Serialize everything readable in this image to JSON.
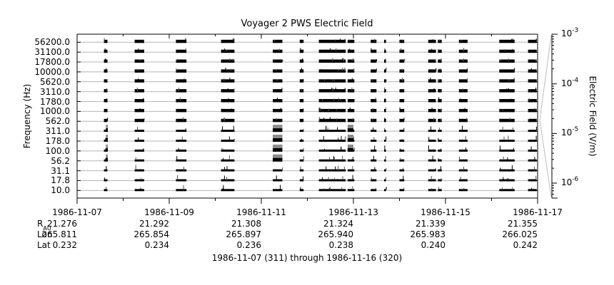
{
  "chart_data": {
    "type": "spectrogram",
    "title": "Voyager 2 PWS Electric Field",
    "ylabel": "Frequency (Hz)",
    "y2label": "Electric Field (V/m)",
    "y2_scale": "log",
    "y2lim": [
      5e-07,
      0.001
    ],
    "y2_ticks": [
      {
        "base": "10",
        "exp": "-3",
        "value": 0.001
      },
      {
        "base": "10",
        "exp": "-4",
        "value": 0.0001
      },
      {
        "base": "10",
        "exp": "-5",
        "value": 1e-05
      },
      {
        "base": "10",
        "exp": "-6",
        "value": 1e-06
      }
    ],
    "channels": [
      "56200.0",
      "31100.0",
      "17800.0",
      "10000.0",
      "5620.0",
      "3110.0",
      "1780.0",
      "1000.0",
      "562.0",
      "311.0",
      "178.0",
      "100.0",
      "56.2",
      "31.1",
      "17.8",
      "10.0"
    ],
    "grid": true,
    "x_start": "1986-11-07",
    "x_end": "1986-11-17",
    "x_ticks": [
      "1986-11-07",
      "1986-11-09",
      "1986-11-11",
      "1986-11-13",
      "1986-11-15",
      "1986-11-17"
    ],
    "ephemeris": [
      {
        "label": "R",
        "sub": "AU",
        "values": [
          "21.276",
          "21.292",
          "21.308",
          "21.324",
          "21.339",
          "21.355"
        ]
      },
      {
        "label": "Lon",
        "sub": "",
        "values": [
          "265.811",
          "265.854",
          "265.897",
          "265.940",
          "265.983",
          "266.025"
        ]
      },
      {
        "label": "Lat",
        "sub": "",
        "values": [
          "0.232",
          "0.234",
          "0.236",
          "0.238",
          "0.240",
          "0.242"
        ]
      }
    ],
    "xlabel": "1986-11-07 (311) through 1986-11-16 (320)",
    "data_intervals": [
      [
        "1986-11-07T14:00",
        "1986-11-07T15:50"
      ],
      [
        "1986-11-08T06:00",
        "1986-11-08T11:00"
      ],
      [
        "1986-11-09T03:30",
        "1986-11-09T09:00"
      ],
      [
        "1986-11-10T03:00",
        "1986-11-10T10:00"
      ],
      [
        "1986-11-11T06:00",
        "1986-11-11T11:00"
      ],
      [
        "1986-11-11T20:00",
        "1986-11-11T22:00"
      ],
      [
        "1986-11-12T06:00",
        "1986-11-12T20:00"
      ],
      [
        "1986-11-12T21:00",
        "1986-11-13T00:30"
      ],
      [
        "1986-11-13T09:00",
        "1986-11-13T12:00"
      ],
      [
        "1986-11-13T16:00",
        "1986-11-13T17:00"
      ],
      [
        "1986-11-14T00:00",
        "1986-11-14T02:30"
      ],
      [
        "1986-11-14T15:00",
        "1986-11-14T19:00"
      ],
      [
        "1986-11-14T20:00",
        "1986-11-14T22:00"
      ],
      [
        "1986-11-15T07:00",
        "1986-11-15T11:30"
      ],
      [
        "1986-11-16T04:00",
        "1986-11-16T12:00"
      ],
      [
        "1986-11-16T19:00",
        "1986-11-16T23:30"
      ]
    ],
    "enhanced_intervals": [
      {
        "from": "1986-11-07T15:00",
        "to": "1986-11-07T16:00",
        "from_channel": "311.0",
        "to_channel": "56.2"
      },
      {
        "from": "1986-11-11T06:00",
        "to": "1986-11-11T11:00",
        "from_channel": "311.0",
        "to_channel": "56.2"
      },
      {
        "from": "1986-11-12T21:00",
        "to": "1986-11-13T00:00",
        "from_channel": "311.0",
        "to_channel": "100.0"
      }
    ]
  }
}
